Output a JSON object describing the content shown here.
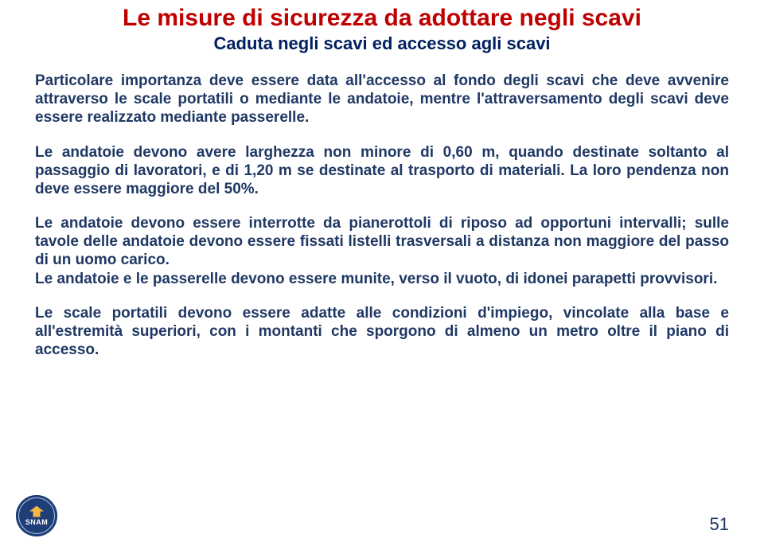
{
  "colors": {
    "title": "#c00000",
    "subtitle": "#002060",
    "body": "#1f3864",
    "pagenum": "#1f3864",
    "logo_bg": "#1f3e77",
    "logo_accent": "#f5b740",
    "background": "#ffffff"
  },
  "typography": {
    "title_size": 30,
    "subtitle_size": 22,
    "body_size": 19,
    "pagenum_size": 22,
    "title_weight": "bold",
    "body_weight": "bold"
  },
  "layout": {
    "gap_title_subtitle": 2,
    "gap_subtitle_p1": 22,
    "gap_p1_p2": 20,
    "gap_p2_p3": 20,
    "gap_p3_p4": 0,
    "gap_p4_p5": 0,
    "gap_p5_p6": 20
  },
  "title": "Le misure di sicurezza da adottare negli scavi",
  "subtitle": "Caduta negli scavi ed accesso agli scavi",
  "p1": "Particolare importanza deve essere data all'accesso al fondo degli scavi che deve avvenire attraverso le scale portatili o mediante le andatoie, mentre l'attraversamento degli scavi deve essere realizzato mediante passerelle.",
  "p2": "Le andatoie devono avere larghezza non minore di 0,60 m, quando destinate soltanto al passaggio di lavoratori, e di 1,20 m se destinate al trasporto di materiali. La loro pendenza non deve essere maggiore del 50%.",
  "p3": "Le andatoie devono essere interrotte da pianerottoli di riposo ad opportuni intervalli; sulle tavole delle andatoie devono essere fissati listelli trasversali a distanza non maggiore del passo di un uomo carico.",
  "p4": "Le andatoie e le passerelle devono essere munite, verso il vuoto, di idonei parapetti provvisori.",
  "p5": "Le scale portatili devono essere adatte alle condizioni d'impiego, vincolate alla base e all'estremità superiori, con i montanti che sporgono di almeno un metro oltre il piano di accesso.",
  "logo_text": "SNAM",
  "page_number": "51"
}
